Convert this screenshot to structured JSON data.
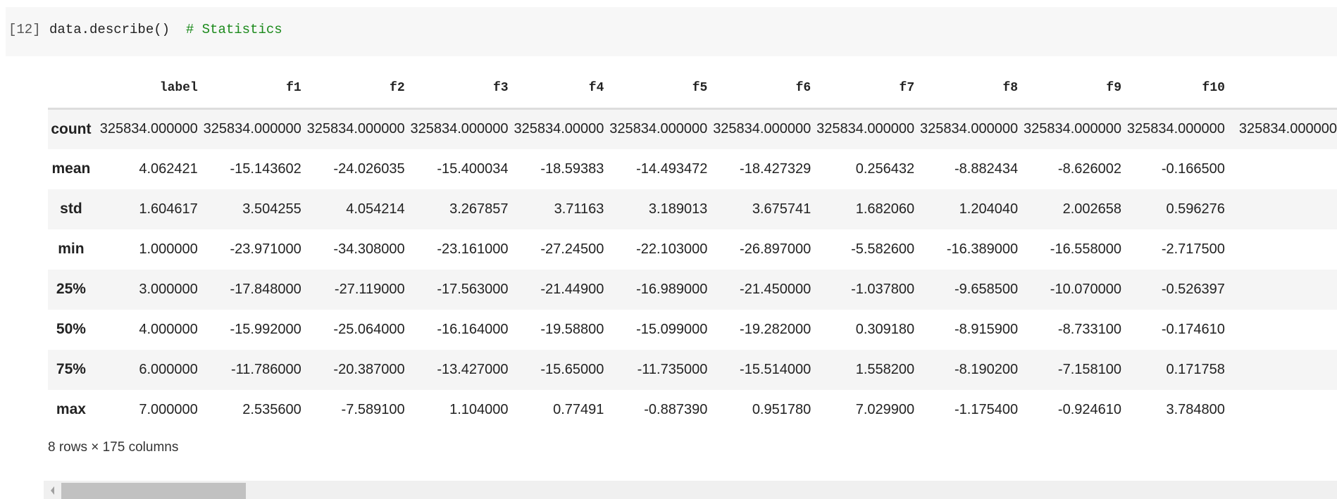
{
  "cell": {
    "prompt": "[12]",
    "code": "data.describe()  ",
    "comment": "# Statistics"
  },
  "table": {
    "columns": [
      "label",
      "f1",
      "f2",
      "f3",
      "f4",
      "f5",
      "f6",
      "f7",
      "f8",
      "f9",
      "f10",
      ""
    ],
    "rows": [
      {
        "index": "count",
        "values": [
          "325834.000000",
          "325834.000000",
          "325834.000000",
          "325834.000000",
          "325834.00000",
          "325834.000000",
          "325834.000000",
          "325834.000000",
          "325834.000000",
          "325834.000000",
          "325834.000000",
          "325834.000000"
        ]
      },
      {
        "index": "mean",
        "values": [
          "4.062421",
          "-15.143602",
          "-24.026035",
          "-15.400034",
          "-18.59383",
          "-14.493472",
          "-18.427329",
          "0.256432",
          "-8.882434",
          "-8.626002",
          "-0.166500",
          ""
        ]
      },
      {
        "index": "std",
        "values": [
          "1.604617",
          "3.504255",
          "4.054214",
          "3.267857",
          "3.71163",
          "3.189013",
          "3.675741",
          "1.682060",
          "1.204040",
          "2.002658",
          "0.596276",
          ""
        ]
      },
      {
        "index": "min",
        "values": [
          "1.000000",
          "-23.971000",
          "-34.308000",
          "-23.161000",
          "-27.24500",
          "-22.103000",
          "-26.897000",
          "-5.582600",
          "-16.389000",
          "-16.558000",
          "-2.717500",
          ""
        ]
      },
      {
        "index": "25%",
        "values": [
          "3.000000",
          "-17.848000",
          "-27.119000",
          "-17.563000",
          "-21.44900",
          "-16.989000",
          "-21.450000",
          "-1.037800",
          "-9.658500",
          "-10.070000",
          "-0.526397",
          ""
        ]
      },
      {
        "index": "50%",
        "values": [
          "4.000000",
          "-15.992000",
          "-25.064000",
          "-16.164000",
          "-19.58800",
          "-15.099000",
          "-19.282000",
          "0.309180",
          "-8.915900",
          "-8.733100",
          "-0.174610",
          ""
        ]
      },
      {
        "index": "75%",
        "values": [
          "6.000000",
          "-11.786000",
          "-20.387000",
          "-13.427000",
          "-15.65000",
          "-11.735000",
          "-15.514000",
          "1.558200",
          "-8.190200",
          "-7.158100",
          "0.171758",
          ""
        ]
      },
      {
        "index": "max",
        "values": [
          "7.000000",
          "2.535600",
          "-7.589100",
          "1.104000",
          "0.77491",
          "-0.887390",
          "0.951780",
          "7.029900",
          "-1.175400",
          "-0.924610",
          "3.784800",
          ""
        ]
      }
    ]
  },
  "shape_text": "8 rows × 175 columns",
  "scrollbar": {
    "position_fraction": 0.0
  }
}
